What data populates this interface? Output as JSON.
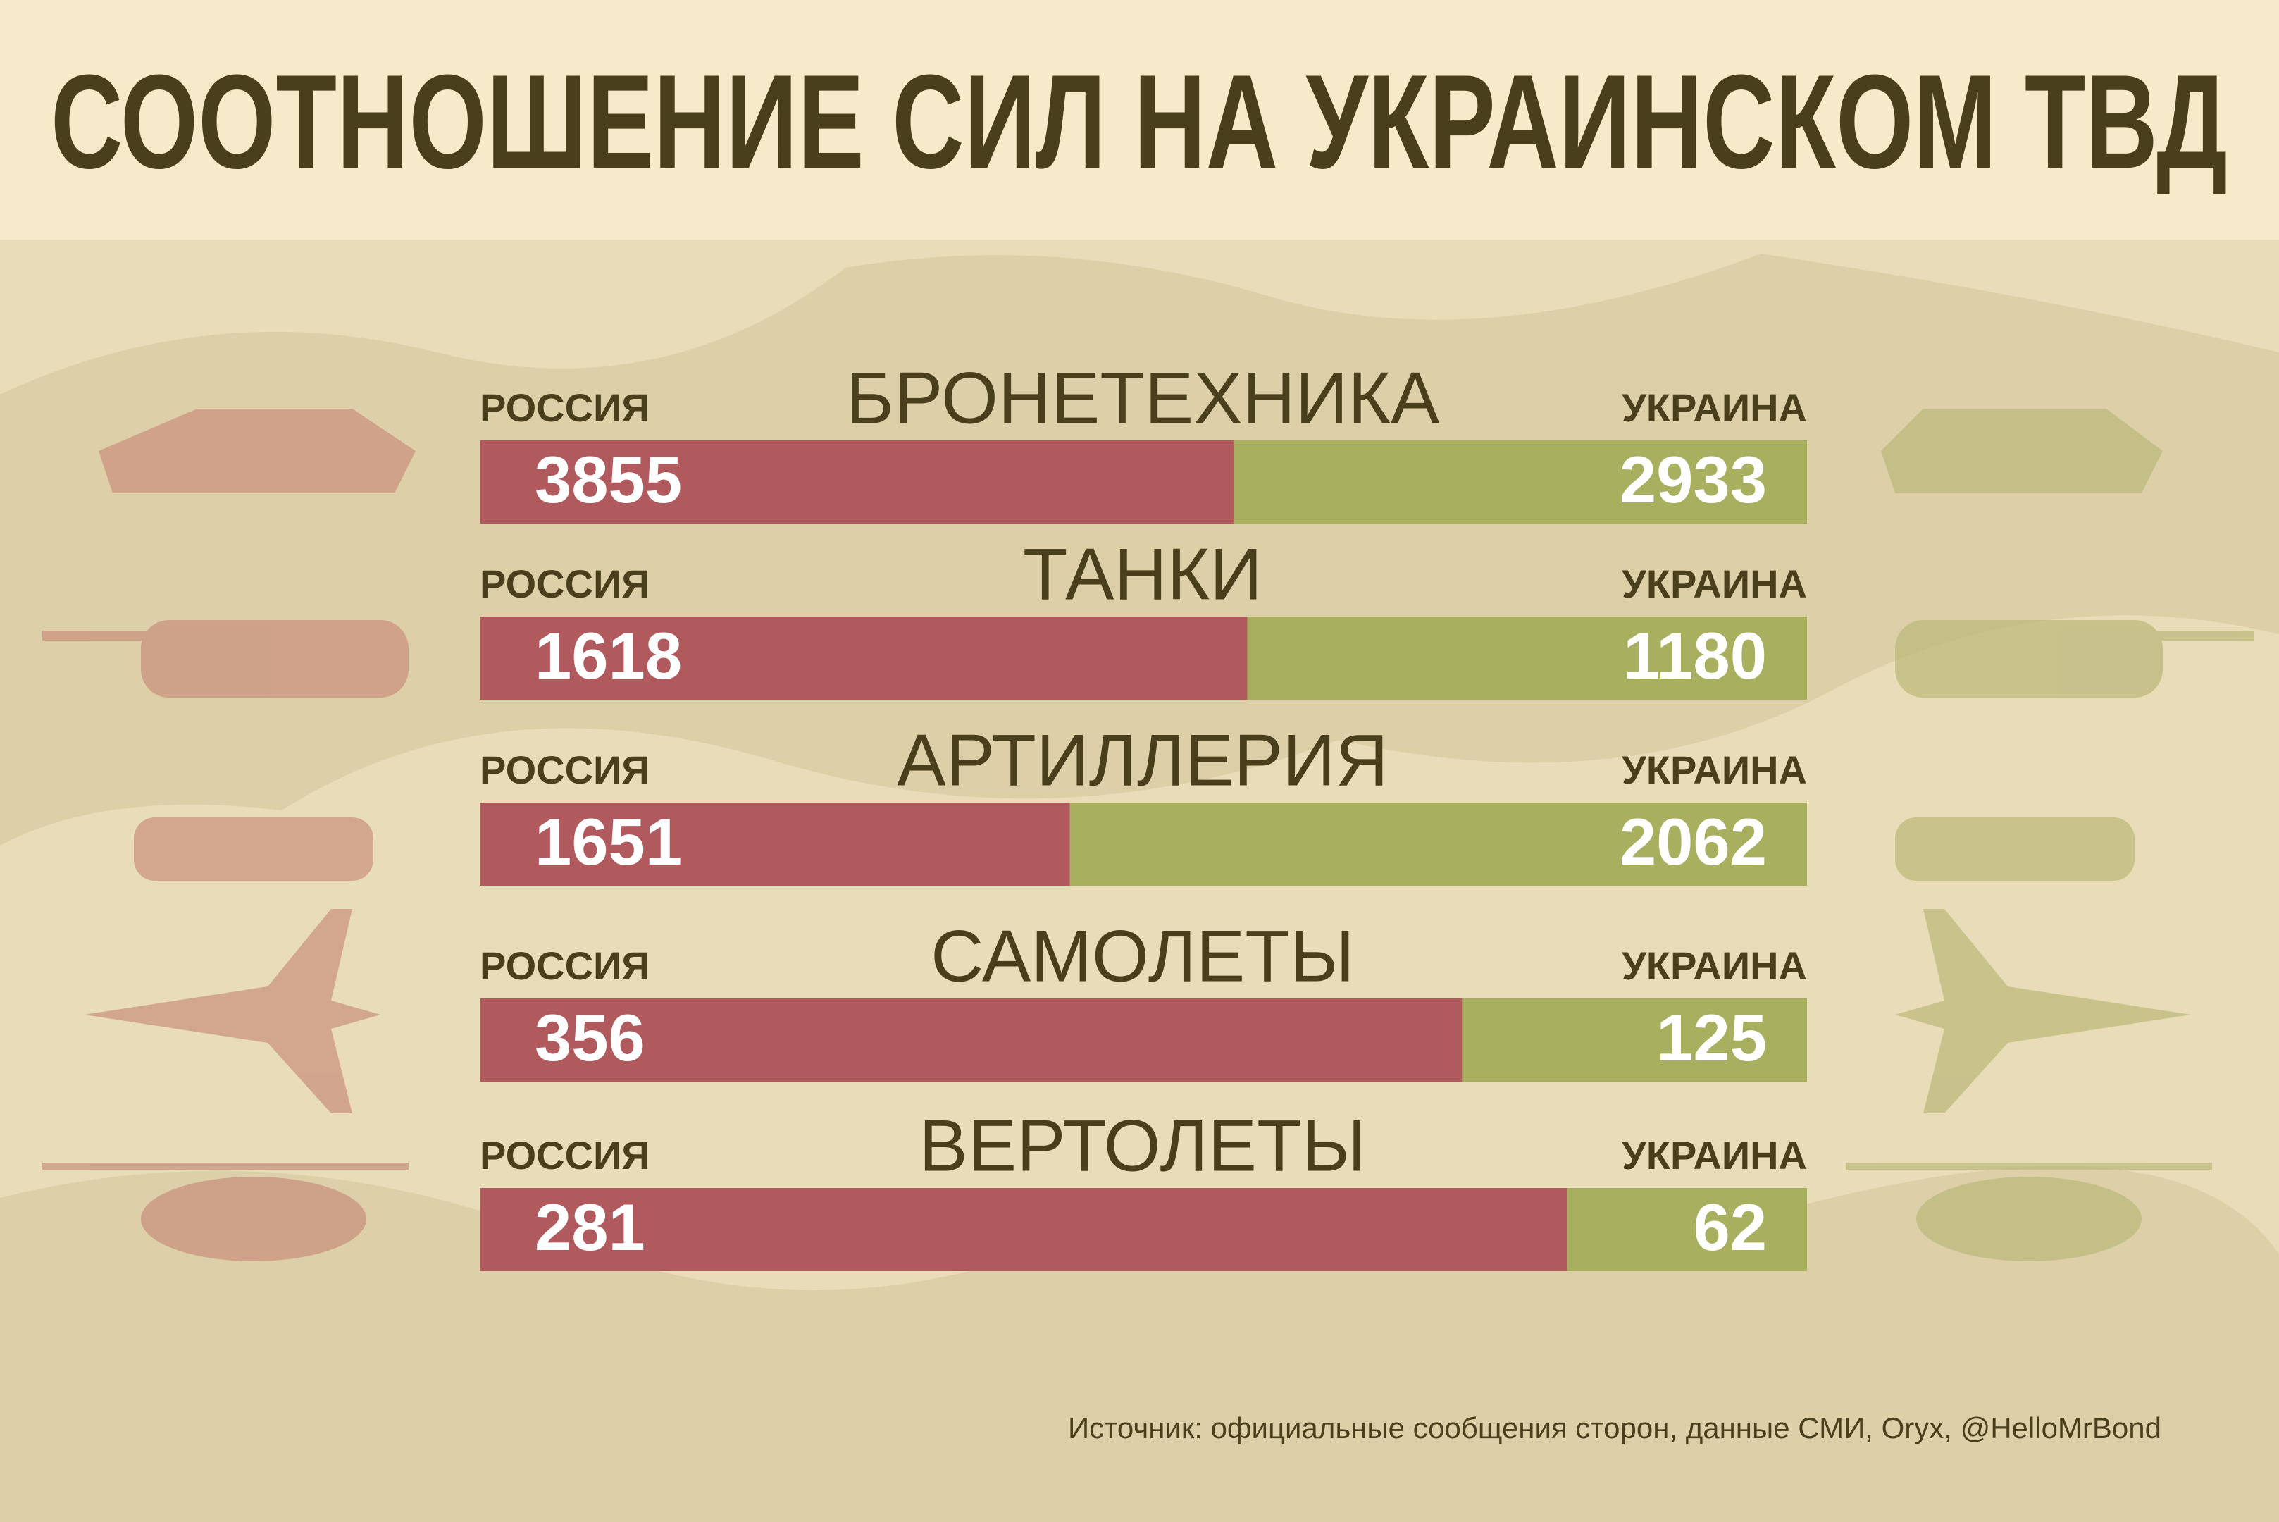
{
  "chart_data": {
    "type": "split-bar",
    "title": "СООТНОШЕНИЕ СИЛ НА УКРАИНСКОМ ТВД",
    "categories": [
      "БРОНЕТЕХНИКА",
      "ТАНКИ",
      "АРТИЛЛЕРИЯ",
      "САМОЛЕТЫ",
      "ВЕРТОЛЕТЫ"
    ],
    "series": [
      {
        "name": "РОССИЯ",
        "color": "#b05a5e",
        "values": [
          3855,
          1618,
          1651,
          356,
          281
        ]
      },
      {
        "name": "УКРАИНА",
        "color": "#a8b060",
        "values": [
          2933,
          1180,
          2062,
          125,
          62
        ]
      }
    ],
    "source": "Источник: официальные сообщения сторон, данные СМИ, Oryx, @HelloMrBond"
  }
}
